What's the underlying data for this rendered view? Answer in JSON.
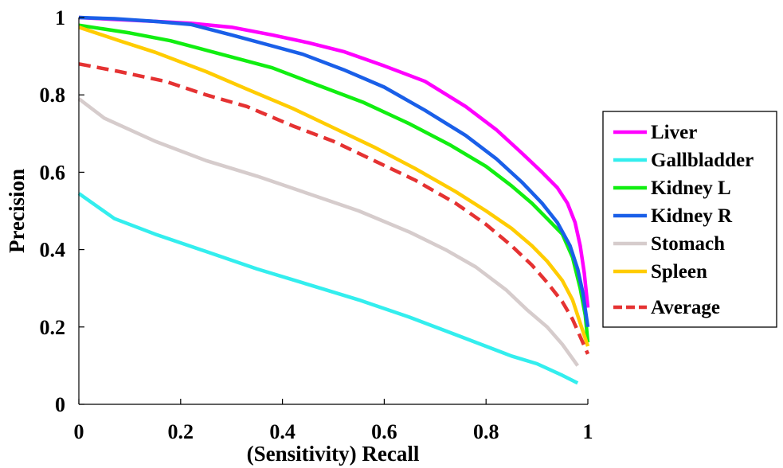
{
  "chart_data": {
    "type": "line",
    "title": "",
    "xlabel": "(Sensitivity) Recall",
    "ylabel": "Precision",
    "xlim": [
      0,
      1
    ],
    "ylim": [
      0,
      1
    ],
    "xticks": [
      "0",
      "0.2",
      "0.4",
      "0.6",
      "0.8",
      "1"
    ],
    "yticks": [
      "0",
      "0.2",
      "0.4",
      "0.6",
      "0.8",
      "1"
    ],
    "grid": false,
    "legend_position": "right",
    "series": [
      {
        "name": "Liver",
        "color": "#ff00ff",
        "dash": false,
        "x": [
          0,
          0.07,
          0.15,
          0.22,
          0.3,
          0.38,
          0.45,
          0.52,
          0.6,
          0.68,
          0.76,
          0.82,
          0.87,
          0.91,
          0.94,
          0.96,
          0.975,
          0.985,
          0.993,
          1.0
        ],
        "y": [
          1.0,
          0.995,
          0.99,
          0.985,
          0.975,
          0.955,
          0.935,
          0.912,
          0.875,
          0.835,
          0.77,
          0.71,
          0.65,
          0.6,
          0.56,
          0.52,
          0.47,
          0.41,
          0.34,
          0.25
        ]
      },
      {
        "name": "Gallbladder",
        "color": "#33eeee",
        "dash": false,
        "x": [
          0,
          0.07,
          0.15,
          0.25,
          0.35,
          0.45,
          0.55,
          0.65,
          0.75,
          0.85,
          0.9,
          0.95,
          0.98
        ],
        "y": [
          0.545,
          0.48,
          0.44,
          0.395,
          0.35,
          0.31,
          0.27,
          0.225,
          0.175,
          0.125,
          0.105,
          0.075,
          0.055
        ]
      },
      {
        "name": "Kidney L",
        "color": "#11ee11",
        "dash": false,
        "x": [
          0,
          0.1,
          0.18,
          0.28,
          0.38,
          0.47,
          0.56,
          0.65,
          0.73,
          0.8,
          0.85,
          0.89,
          0.92,
          0.95,
          0.97,
          0.985,
          0.995,
          1.0
        ],
        "y": [
          0.98,
          0.96,
          0.94,
          0.905,
          0.87,
          0.825,
          0.78,
          0.725,
          0.67,
          0.615,
          0.565,
          0.52,
          0.48,
          0.44,
          0.38,
          0.3,
          0.23,
          0.16
        ]
      },
      {
        "name": "Kidney R",
        "color": "#1a5fe8",
        "dash": false,
        "x": [
          0,
          0.07,
          0.15,
          0.22,
          0.3,
          0.37,
          0.44,
          0.52,
          0.6,
          0.68,
          0.76,
          0.82,
          0.87,
          0.91,
          0.94,
          0.965,
          0.98,
          0.99,
          1.0
        ],
        "y": [
          1.0,
          0.997,
          0.99,
          0.982,
          0.955,
          0.93,
          0.905,
          0.865,
          0.82,
          0.76,
          0.695,
          0.635,
          0.575,
          0.52,
          0.47,
          0.41,
          0.35,
          0.29,
          0.2
        ]
      },
      {
        "name": "Stomach",
        "color": "#d6cccc",
        "dash": false,
        "x": [
          0,
          0.05,
          0.15,
          0.25,
          0.35,
          0.45,
          0.55,
          0.65,
          0.72,
          0.78,
          0.84,
          0.88,
          0.92,
          0.95,
          0.98
        ],
        "y": [
          0.79,
          0.74,
          0.68,
          0.63,
          0.59,
          0.545,
          0.5,
          0.445,
          0.4,
          0.355,
          0.295,
          0.245,
          0.2,
          0.155,
          0.1
        ]
      },
      {
        "name": "Spleen",
        "color": "#ffcc00",
        "dash": false,
        "x": [
          0,
          0.08,
          0.15,
          0.25,
          0.33,
          0.42,
          0.5,
          0.58,
          0.66,
          0.74,
          0.8,
          0.85,
          0.89,
          0.92,
          0.95,
          0.97,
          0.985,
          1.0
        ],
        "y": [
          0.975,
          0.94,
          0.91,
          0.86,
          0.815,
          0.765,
          0.715,
          0.665,
          0.61,
          0.55,
          0.5,
          0.455,
          0.41,
          0.37,
          0.32,
          0.27,
          0.21,
          0.15
        ]
      },
      {
        "name": "Average",
        "color": "#e53232",
        "dash": true,
        "x": [
          0,
          0.08,
          0.17,
          0.25,
          0.33,
          0.42,
          0.5,
          0.58,
          0.66,
          0.74,
          0.8,
          0.85,
          0.89,
          0.92,
          0.95,
          0.97,
          0.985,
          1.0
        ],
        "y": [
          0.88,
          0.86,
          0.835,
          0.8,
          0.77,
          0.72,
          0.68,
          0.63,
          0.58,
          0.52,
          0.465,
          0.41,
          0.36,
          0.315,
          0.265,
          0.22,
          0.175,
          0.13
        ]
      }
    ]
  }
}
